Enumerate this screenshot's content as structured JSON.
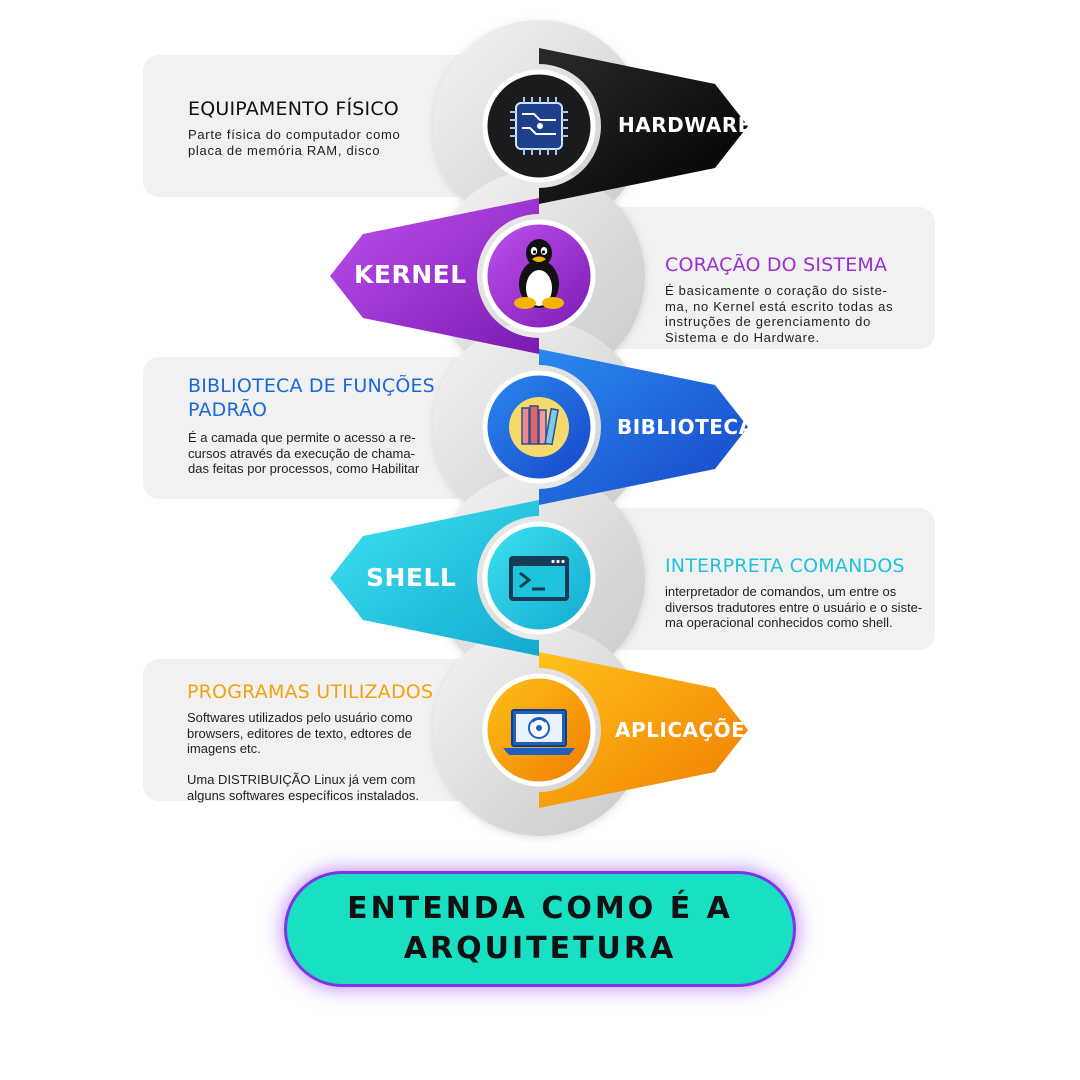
{
  "layers": [
    {
      "label": "HARDWARE",
      "card_title": "EQUIPAMENTO FÍSICO",
      "card_text": "Parte física do computador como\nplaca de memória RAM, disco",
      "icon": "cpu-chip-icon",
      "color": "#111111"
    },
    {
      "label": "KERNEL",
      "card_title": "CORAÇÃO DO SISTEMA",
      "card_text": "É basicamente o coração do siste-\nma, no Kernel está escrito todas as\ninstruções de gerenciamento do\nSistema e do Hardware.",
      "icon": "tux-penguin-icon",
      "color": "#9b2fd0"
    },
    {
      "label": "BIBLIOTECA",
      "card_title": "BIBLIOTECA DE FUNÇÕES\nPADRÃO",
      "card_text": "É a camada que permite o acesso a re-\ncursos através da execução de chama-\ndas feitas por processos, como Habilitar",
      "icon": "books-icon",
      "color": "#1a68d8"
    },
    {
      "label": "SHELL",
      "card_title": "INTERPRETA COMANDOS",
      "card_text": "interpretador de comandos, um entre os\ndiversos tradutores entre o usuário e o siste-\nma operacional conhecidos como shell.",
      "icon": "terminal-window-icon",
      "color": "#1ec3dc"
    },
    {
      "label": "APLICAÇÕES",
      "card_title": "PROGRAMAS UTILIZADOS",
      "card_text": "Softwares utilizados pelo usuário como\nbrowsers, editores de texto, edtores de\nimagens etc.\n\nUma DISTRIBUIÇÃO Linux já vem com\nalguns  softwares específicos instalados.",
      "icon": "laptop-disc-icon",
      "color": "#f5a00c"
    }
  ],
  "cta": {
    "line1": "ENTENDA COMO É A",
    "line2": "ARQUITETURA"
  }
}
